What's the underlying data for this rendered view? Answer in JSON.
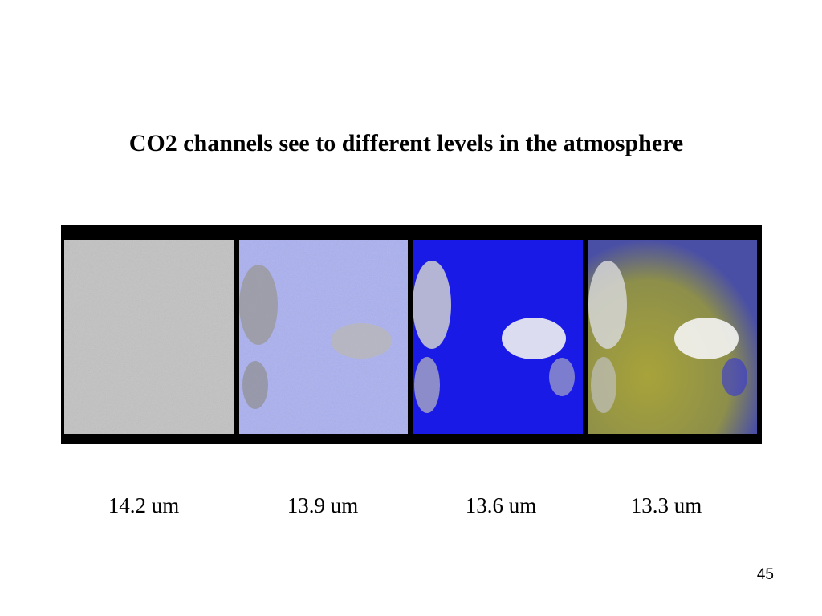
{
  "slide": {
    "title": "CO2 channels see to different levels in the atmosphere",
    "panels": [
      {
        "label": "14.2 um"
      },
      {
        "label": "13.9 um"
      },
      {
        "label": "13.6 um"
      },
      {
        "label": "13.3 um"
      }
    ],
    "page_number": "45"
  }
}
